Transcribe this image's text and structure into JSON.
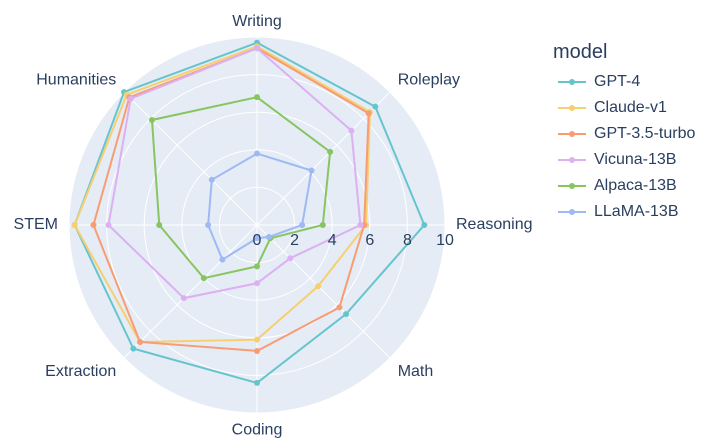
{
  "chart_data": {
    "type": "radar",
    "categories": [
      "Writing",
      "Roleplay",
      "Reasoning",
      "Math",
      "Coding",
      "Extraction",
      "STEM",
      "Humanities"
    ],
    "series": [
      {
        "name": "GPT-4",
        "color": "#66c5cc",
        "values": [
          9.7,
          8.9,
          8.9,
          6.7,
          8.4,
          9.3,
          9.7,
          10.0
        ]
      },
      {
        "name": "Claude-v1",
        "color": "#f6cf71",
        "values": [
          9.5,
          8.5,
          5.8,
          4.6,
          6.1,
          8.8,
          9.7,
          9.8
        ]
      },
      {
        "name": "GPT-3.5-turbo",
        "color": "#f89c74",
        "values": [
          9.4,
          8.4,
          5.7,
          6.2,
          6.7,
          8.8,
          8.7,
          9.6
        ]
      },
      {
        "name": "Vicuna-13B",
        "color": "#dcb0f2",
        "values": [
          9.4,
          7.1,
          5.5,
          2.5,
          3.1,
          5.5,
          7.9,
          9.5
        ]
      },
      {
        "name": "Alpaca-13B",
        "color": "#87c55f",
        "values": [
          6.8,
          5.5,
          3.5,
          1.0,
          2.2,
          4.0,
          5.2,
          7.9
        ]
      },
      {
        "name": "LLaMA-13B",
        "color": "#9eb9f3",
        "values": [
          3.8,
          4.1,
          2.4,
          0.9,
          0.7,
          2.6,
          2.6,
          3.4
        ]
      }
    ],
    "rlim": [
      0,
      10
    ],
    "rticks": [
      0,
      2,
      4,
      6,
      8,
      10
    ],
    "legend_title": "model"
  }
}
